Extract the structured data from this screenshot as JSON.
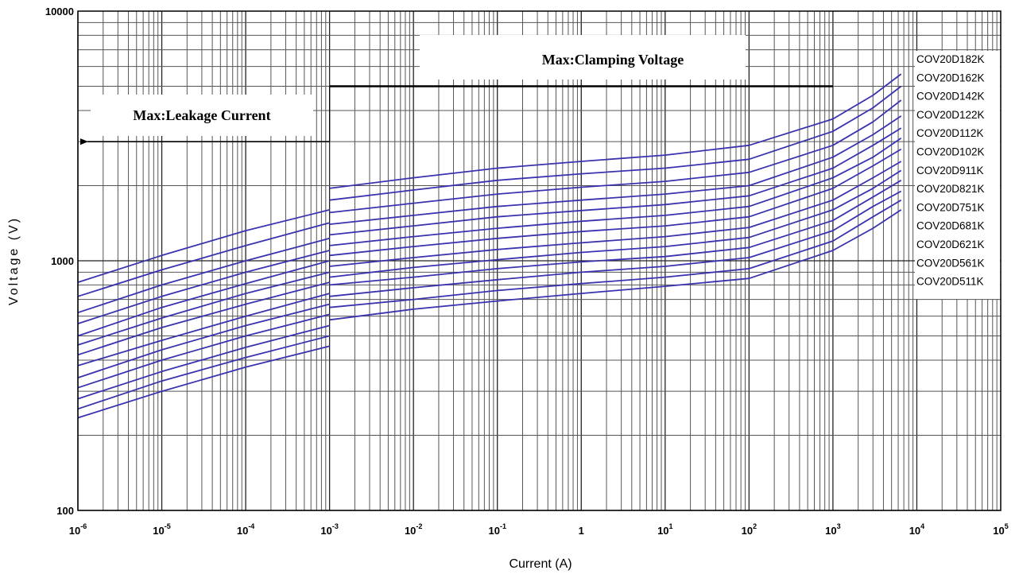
{
  "chart_data": {
    "type": "line",
    "xlabel": "Current (A)",
    "ylabel": "Voltage (V)",
    "x_scale": "log",
    "y_scale": "log",
    "xlim": [
      1e-06,
      100000
    ],
    "ylim": [
      100,
      10000
    ],
    "grid": true,
    "x_ticks": [
      {
        "value": 1e-06,
        "base": "10",
        "exp": "-6"
      },
      {
        "value": 1e-05,
        "base": "10",
        "exp": "-5"
      },
      {
        "value": 0.0001,
        "base": "10",
        "exp": "-4"
      },
      {
        "value": 0.001,
        "base": "10",
        "exp": "-3"
      },
      {
        "value": 0.01,
        "base": "10",
        "exp": "-2"
      },
      {
        "value": 0.1,
        "base": "10",
        "exp": "-1"
      },
      {
        "value": 1,
        "base": "1",
        "exp": ""
      },
      {
        "value": 10,
        "base": "10",
        "exp": "1"
      },
      {
        "value": 100,
        "base": "10",
        "exp": "2"
      },
      {
        "value": 1000,
        "base": "10",
        "exp": "3"
      },
      {
        "value": 10000,
        "base": "10",
        "exp": "4"
      },
      {
        "value": 100000,
        "base": "10",
        "exp": "5"
      }
    ],
    "y_ticks": [
      {
        "value": 100,
        "label": "100"
      },
      {
        "value": 1000,
        "label": "1000"
      },
      {
        "value": 10000,
        "label": "10000"
      }
    ],
    "line_color": "#3a33b0",
    "legend_position": "right",
    "leakage_x": [
      1e-06,
      1e-05,
      0.0001,
      0.001
    ],
    "clamp_x": [
      0.001,
      0.01,
      0.1,
      1,
      10,
      100,
      1000,
      3000,
      6500
    ],
    "series": [
      {
        "name": "COV20D182K",
        "leakage": [
          820,
          1050,
          1320,
          1600
        ],
        "clamp": [
          1950,
          2150,
          2350,
          2500,
          2650,
          2900,
          3700,
          4600,
          5600
        ]
      },
      {
        "name": "COV20D162K",
        "leakage": [
          720,
          920,
          1150,
          1420
        ],
        "clamp": [
          1750,
          1920,
          2100,
          2230,
          2350,
          2550,
          3300,
          4100,
          5000
        ]
      },
      {
        "name": "COV20D142K",
        "leakage": [
          620,
          800,
          1000,
          1230
        ],
        "clamp": [
          1560,
          1700,
          1850,
          1970,
          2080,
          2260,
          2900,
          3600,
          4400
        ]
      },
      {
        "name": "COV20D122K",
        "leakage": [
          560,
          720,
          900,
          1100
        ],
        "clamp": [
          1400,
          1520,
          1650,
          1750,
          1850,
          2000,
          2600,
          3200,
          3800
        ]
      },
      {
        "name": "COV20D112K",
        "leakage": [
          500,
          650,
          810,
          1000
        ],
        "clamp": [
          1270,
          1380,
          1500,
          1590,
          1680,
          1820,
          2350,
          2900,
          3400
        ]
      },
      {
        "name": "COV20D102K",
        "leakage": [
          460,
          590,
          740,
          900
        ],
        "clamp": [
          1150,
          1250,
          1350,
          1440,
          1520,
          1650,
          2150,
          2600,
          3100
        ]
      },
      {
        "name": "COV20D911K",
        "leakage": [
          420,
          540,
          670,
          820
        ],
        "clamp": [
          1050,
          1140,
          1230,
          1310,
          1380,
          1500,
          1950,
          2400,
          2800
        ]
      },
      {
        "name": "COV20D821K",
        "leakage": [
          380,
          480,
          600,
          740
        ],
        "clamp": [
          950,
          1030,
          1110,
          1180,
          1250,
          1360,
          1750,
          2150,
          2500
        ]
      },
      {
        "name": "COV20D751K",
        "leakage": [
          340,
          440,
          550,
          670
        ],
        "clamp": [
          860,
          940,
          1010,
          1080,
          1140,
          1240,
          1600,
          1950,
          2300
        ]
      },
      {
        "name": "COV20D681K",
        "leakage": [
          310,
          400,
          500,
          610
        ],
        "clamp": [
          800,
          860,
          930,
          990,
          1040,
          1130,
          1450,
          1800,
          2100
        ]
      },
      {
        "name": "COV20D621K",
        "leakage": [
          280,
          360,
          450,
          550
        ],
        "clamp": [
          720,
          780,
          840,
          900,
          950,
          1030,
          1320,
          1650,
          1900
        ]
      },
      {
        "name": "COV20D561K",
        "leakage": [
          255,
          330,
          410,
          500
        ],
        "clamp": [
          650,
          700,
          760,
          810,
          860,
          930,
          1200,
          1500,
          1750
        ]
      },
      {
        "name": "COV20D511K",
        "leakage": [
          235,
          300,
          375,
          455
        ],
        "clamp": [
          580,
          640,
          690,
          740,
          790,
          850,
          1100,
          1350,
          1600
        ]
      }
    ],
    "annotations": [
      {
        "name": "leakage-annotation",
        "text": "Max:Leakage Current",
        "line_y": 3000,
        "line_x_from": 0.001,
        "arrow_to_x": 1e-06
      },
      {
        "name": "clamping-annotation",
        "text": "Max:Clamping Voltage",
        "line_y": 5000,
        "line_x_from": 0.001,
        "line_x_to": 1000
      }
    ]
  }
}
